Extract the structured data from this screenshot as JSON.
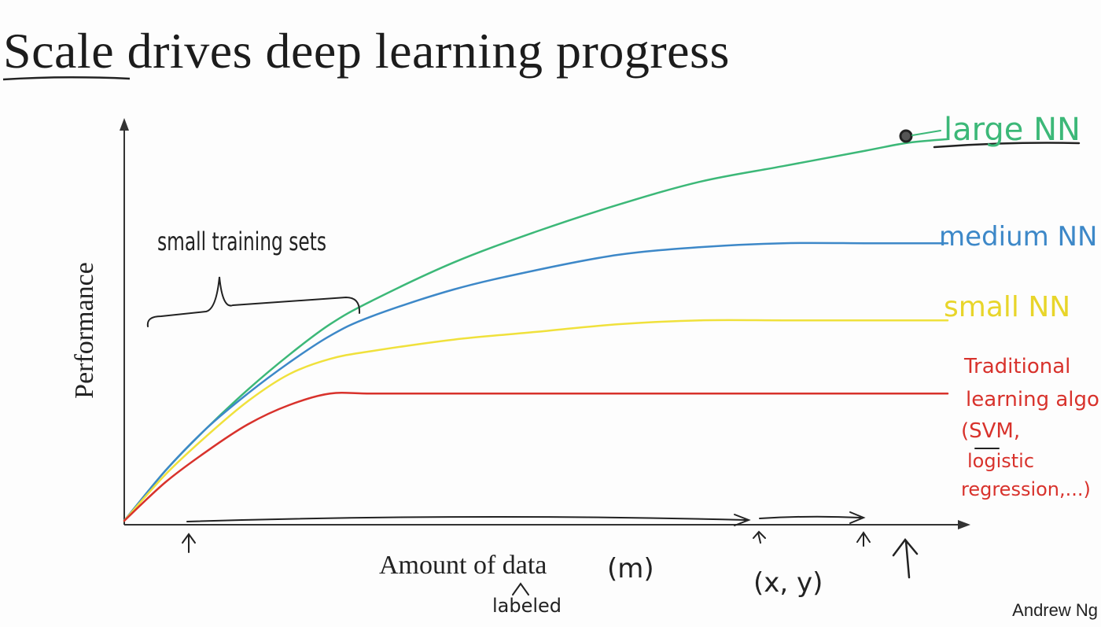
{
  "slide": {
    "title_lead": "Scale",
    "title_rest": " drives deep learning progress",
    "credit": "Andrew Ng"
  },
  "chart_data": {
    "type": "line",
    "title": "Scale drives deep learning progress",
    "xlabel": "Amount of data",
    "ylabel": "Performance",
    "xlim": [
      0,
      100
    ],
    "ylim": [
      0,
      100
    ],
    "grid": false,
    "legend": "labels at line ends (right)",
    "x": [
      0,
      5,
      10,
      15,
      20,
      25,
      30,
      40,
      50,
      60,
      70,
      80,
      90,
      95,
      100
    ],
    "series": [
      {
        "name": "large NN",
        "color": "#3cb878",
        "values": [
          0,
          13,
          24,
          34,
          43,
          51,
          57,
          67,
          75,
          82,
          88,
          92,
          96,
          98,
          99
        ]
      },
      {
        "name": "medium NN",
        "color": "#3d88c8",
        "values": [
          0,
          13,
          24,
          33,
          41,
          48,
          53,
          60,
          65,
          69,
          71,
          72,
          72,
          72,
          72
        ]
      },
      {
        "name": "small NN",
        "color": "#f0e13c",
        "values": [
          0,
          12,
          22,
          31,
          38,
          42,
          44,
          47,
          49,
          51,
          52,
          52,
          52,
          52,
          52
        ]
      },
      {
        "name": "Traditional learning algo (SVM, logistic regression,...)",
        "color": "#d8322c",
        "values": [
          0,
          10,
          18,
          25,
          30,
          33,
          33,
          33,
          33,
          33,
          33,
          33,
          33,
          33,
          33
        ]
      }
    ],
    "annotations": {
      "small_sets": "small training sets",
      "m_label": "(m)",
      "labeled": "labeled",
      "xy": "(x, y)",
      "large": "large NN",
      "medium": "medium NN",
      "small": "small NN",
      "trad_lines": [
        "Traditional",
        "learning algo",
        "(SVM,",
        "logistic",
        "regression,...)"
      ]
    }
  }
}
